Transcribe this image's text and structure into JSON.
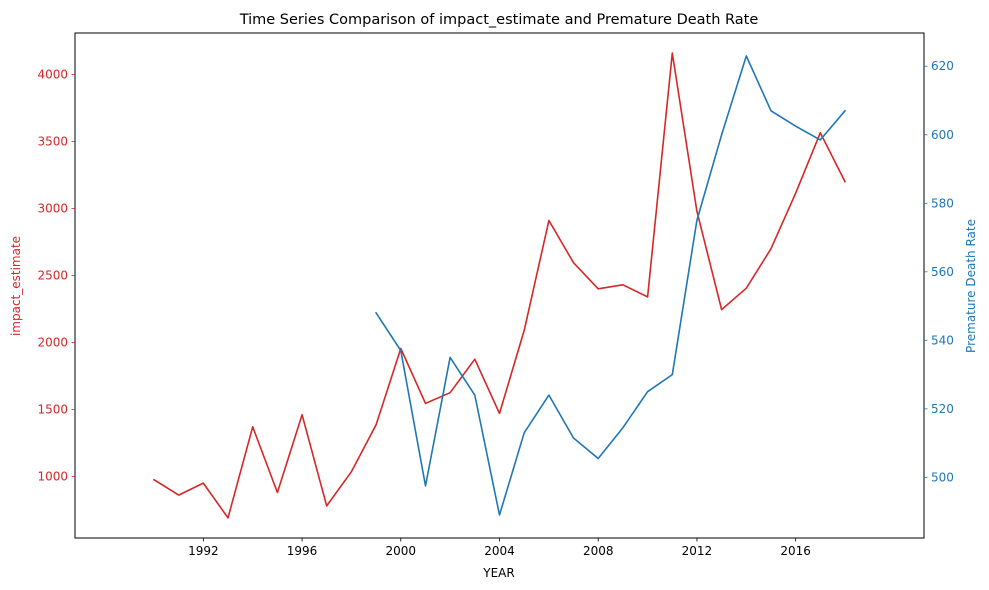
{
  "chart_data": {
    "type": "line",
    "title": "Time Series Comparison of impact_estimate and Premature Death Rate",
    "xlabel": "YEAR",
    "xlim": [
      1986.8,
      2021.2
    ],
    "x_ticks": [
      1992,
      1996,
      2000,
      2004,
      2008,
      2012,
      2016
    ],
    "grid": false,
    "legend": "none",
    "series": [
      {
        "name": "impact_estimate",
        "axis": "left",
        "color": "#d62728",
        "x": [
          1990,
          1991,
          1992,
          1993,
          1994,
          1995,
          1996,
          1997,
          1998,
          1999,
          2000,
          2001,
          2002,
          2003,
          2004,
          2005,
          2006,
          2007,
          2008,
          2009,
          2010,
          2011,
          2012,
          2013,
          2014,
          2015,
          2016,
          2017,
          2018
        ],
        "y": [
          975,
          860,
          950,
          690,
          1370,
          880,
          1460,
          780,
          1035,
          1385,
          1955,
          1545,
          1625,
          1875,
          1470,
          2090,
          2910,
          2595,
          2400,
          2430,
          2340,
          4160,
          2980,
          2245,
          2405,
          2700,
          3115,
          3565,
          3200
        ]
      },
      {
        "name": "Premature Death Rate",
        "axis": "right",
        "color": "#1f77b4",
        "x": [
          1999,
          2000,
          2001,
          2002,
          2003,
          2004,
          2005,
          2006,
          2007,
          2008,
          2009,
          2010,
          2011,
          2012,
          2013,
          2014,
          2015,
          2016,
          2017,
          2018
        ],
        "y": [
          548,
          537,
          497.5,
          535,
          524,
          489,
          513,
          524,
          511.5,
          505.5,
          514.5,
          525,
          530,
          575,
          600,
          623,
          607,
          602.5,
          598.5,
          607
        ]
      }
    ],
    "y_left": {
      "label": "impact_estimate",
      "color": "#d62728",
      "lim": [
        540,
        4310
      ],
      "ticks": [
        1000,
        1500,
        2000,
        2500,
        3000,
        3500,
        4000
      ]
    },
    "y_right": {
      "label": "Premature Death Rate",
      "color": "#1f77b4",
      "lim": [
        482.3,
        629.7
      ],
      "ticks": [
        500,
        520,
        540,
        560,
        580,
        600,
        620
      ]
    }
  }
}
